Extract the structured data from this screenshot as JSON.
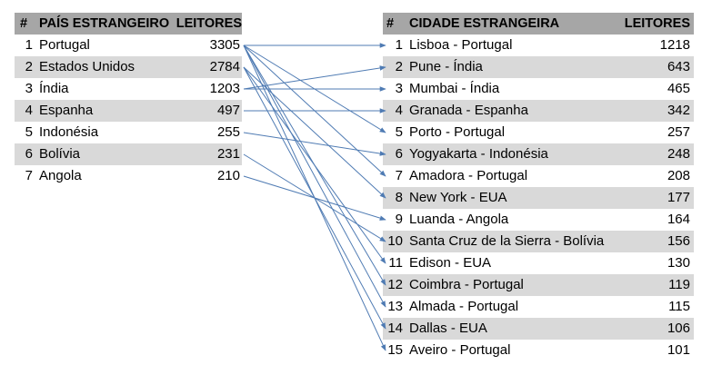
{
  "left_table": {
    "headers": {
      "num": "#",
      "country": "PAÍS ESTRANGEIRO",
      "readers": "LEITORES"
    },
    "rows": [
      {
        "num": "1",
        "country": "Portugal",
        "readers": "3305"
      },
      {
        "num": "2",
        "country": "Estados Unidos",
        "readers": "2784"
      },
      {
        "num": "3",
        "country": "Índia",
        "readers": "1203"
      },
      {
        "num": "4",
        "country": "Espanha",
        "readers": "497"
      },
      {
        "num": "5",
        "country": "Indonésia",
        "readers": "255"
      },
      {
        "num": "6",
        "country": "Bolívia",
        "readers": "231"
      },
      {
        "num": "7",
        "country": "Angola",
        "readers": "210"
      }
    ]
  },
  "right_table": {
    "headers": {
      "num": "#",
      "city": "CIDADE ESTRANGEIRA",
      "readers": "LEITORES"
    },
    "rows": [
      {
        "num": "1",
        "city": "Lisboa - Portugal",
        "readers": "1218"
      },
      {
        "num": "2",
        "city": "Pune - Índia",
        "readers": "643"
      },
      {
        "num": "3",
        "city": "Mumbai - Índia",
        "readers": "465"
      },
      {
        "num": "4",
        "city": "Granada - Espanha",
        "readers": "342"
      },
      {
        "num": "5",
        "city": "Porto - Portugal",
        "readers": "257"
      },
      {
        "num": "6",
        "city": "Yogyakarta - Indonésia",
        "readers": "248"
      },
      {
        "num": "7",
        "city": "Amadora - Portugal",
        "readers": "208"
      },
      {
        "num": "8",
        "city": "New York - EUA",
        "readers": "177"
      },
      {
        "num": "9",
        "city": "Luanda - Angola",
        "readers": "164"
      },
      {
        "num": "10",
        "city": "Santa Cruz de la Sierra - Bolívia",
        "readers": "156"
      },
      {
        "num": "11",
        "city": "Edison - EUA",
        "readers": "130"
      },
      {
        "num": "12",
        "city": "Coimbra - Portugal",
        "readers": "119"
      },
      {
        "num": "13",
        "city": "Almada - Portugal",
        "readers": "115"
      },
      {
        "num": "14",
        "city": "Dallas - EUA",
        "readers": "106"
      },
      {
        "num": "15",
        "city": "Aveiro - Portugal",
        "readers": "101"
      }
    ]
  },
  "links": [
    {
      "country": 1,
      "city": 1
    },
    {
      "country": 1,
      "city": 5
    },
    {
      "country": 1,
      "city": 7
    },
    {
      "country": 1,
      "city": 12
    },
    {
      "country": 1,
      "city": 13
    },
    {
      "country": 1,
      "city": 15
    },
    {
      "country": 2,
      "city": 8
    },
    {
      "country": 2,
      "city": 11
    },
    {
      "country": 2,
      "city": 14
    },
    {
      "country": 3,
      "city": 2
    },
    {
      "country": 3,
      "city": 3
    },
    {
      "country": 4,
      "city": 4
    },
    {
      "country": 5,
      "city": 6
    },
    {
      "country": 6,
      "city": 10
    },
    {
      "country": 7,
      "city": 9
    }
  ],
  "colors": {
    "header_bg": "#a6a6a6",
    "shade_bg": "#d9d9d9",
    "arrow": "#4f7bb3"
  }
}
